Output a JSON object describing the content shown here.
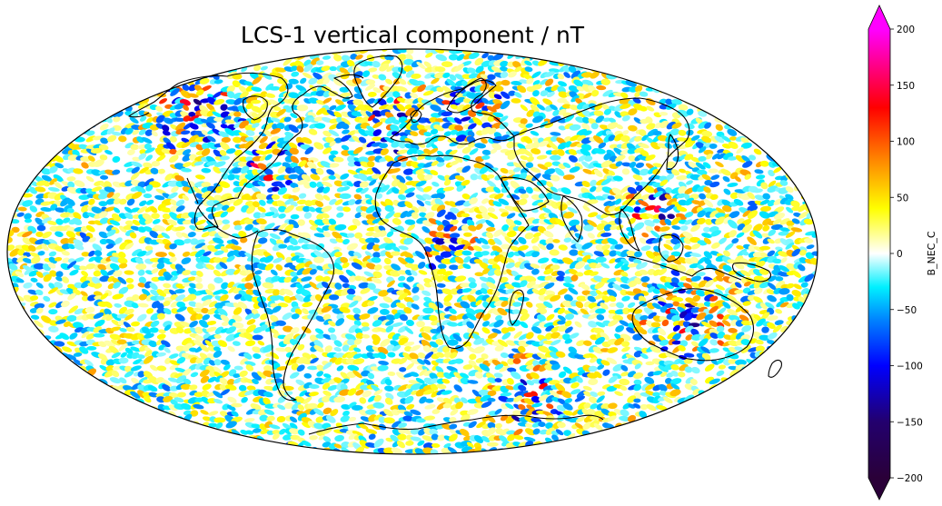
{
  "title": "LCS-1 vertical component / nT",
  "projection": "Mollweide",
  "colorbar": {
    "label": "B_NEC_C",
    "min": -200,
    "max": 200,
    "extend": "both",
    "ticks": [
      200,
      150,
      100,
      50,
      0,
      -50,
      -100,
      -150,
      -200
    ],
    "tick_labels": [
      "200",
      "150",
      "100",
      "50",
      "0",
      "−50",
      "−100",
      "−150",
      "−200"
    ],
    "colormap": [
      {
        "v": -200,
        "color": "#2a0038"
      },
      {
        "v": -150,
        "color": "#23006e"
      },
      {
        "v": -100,
        "color": "#0000ff"
      },
      {
        "v": -60,
        "color": "#0080ff"
      },
      {
        "v": -30,
        "color": "#00f0ff"
      },
      {
        "v": 0,
        "color": "#ffffff"
      },
      {
        "v": 40,
        "color": "#ffff00"
      },
      {
        "v": 80,
        "color": "#ff9000"
      },
      {
        "v": 130,
        "color": "#ff0000"
      },
      {
        "v": 170,
        "color": "#ff0090"
      },
      {
        "v": 200,
        "color": "#ff00ff"
      }
    ],
    "over_color": "#ff00ff",
    "under_color": "#2a0038"
  },
  "coastline_color": "#000000",
  "background_color": "#ffffff"
}
